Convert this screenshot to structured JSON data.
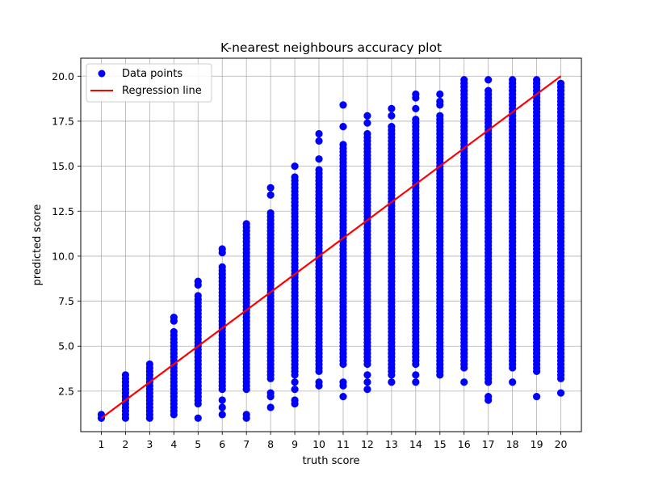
{
  "chart_data": {
    "type": "scatter",
    "title": "K-nearest neighbours accuracy plot",
    "xlabel": "truth score",
    "ylabel": "predicted score",
    "xlim": [
      0.15,
      20.85
    ],
    "ylim": [
      0.25,
      21.0
    ],
    "x_ticks": [
      1,
      2,
      3,
      4,
      5,
      6,
      7,
      8,
      9,
      10,
      11,
      12,
      13,
      14,
      15,
      16,
      17,
      18,
      19,
      20
    ],
    "y_ticks": [
      2.5,
      5.0,
      7.5,
      10.0,
      12.5,
      15.0,
      17.5,
      20.0
    ],
    "y_tick_labels": [
      "2.5",
      "5.0",
      "7.5",
      "10.0",
      "12.5",
      "15.0",
      "17.5",
      "20.0"
    ],
    "grid": true,
    "legend_position": "top-left",
    "series": [
      {
        "name": "Data points",
        "kind": "scatter",
        "color": "#0000ff",
        "columns": [
          {
            "x": 1,
            "min": 1.0,
            "max": 1.2,
            "outliers": []
          },
          {
            "x": 2,
            "min": 1.0,
            "max": 3.4,
            "outliers": []
          },
          {
            "x": 3,
            "min": 1.0,
            "max": 4.0,
            "outliers": []
          },
          {
            "x": 4,
            "min": 1.2,
            "max": 5.8,
            "outliers": [
              6.4,
              6.6
            ]
          },
          {
            "x": 5,
            "min": 1.8,
            "max": 7.8,
            "outliers": [
              1.0,
              8.4,
              8.6
            ]
          },
          {
            "x": 6,
            "min": 2.6,
            "max": 9.4,
            "outliers": [
              1.2,
              1.6,
              2.0,
              10.2,
              10.4
            ]
          },
          {
            "x": 7,
            "min": 2.6,
            "max": 11.8,
            "outliers": [
              1.0,
              1.2
            ]
          },
          {
            "x": 8,
            "min": 3.2,
            "max": 12.4,
            "outliers": [
              1.6,
              2.2,
              2.4,
              13.4,
              13.8
            ]
          },
          {
            "x": 9,
            "min": 3.4,
            "max": 14.4,
            "outliers": [
              1.8,
              2.0,
              2.6,
              3.0,
              15.0
            ]
          },
          {
            "x": 10,
            "min": 3.6,
            "max": 14.8,
            "outliers": [
              2.8,
              3.0,
              15.4,
              16.4,
              16.8
            ]
          },
          {
            "x": 11,
            "min": 4.0,
            "max": 16.2,
            "outliers": [
              2.2,
              2.8,
              3.0,
              17.2,
              18.4
            ]
          },
          {
            "x": 12,
            "min": 4.0,
            "max": 16.8,
            "outliers": [
              2.6,
              3.0,
              3.4,
              17.4,
              17.8
            ]
          },
          {
            "x": 13,
            "min": 3.4,
            "max": 17.2,
            "outliers": [
              3.0,
              17.8,
              18.2
            ]
          },
          {
            "x": 14,
            "min": 4.0,
            "max": 17.6,
            "outliers": [
              3.0,
              3.4,
              18.2,
              18.8,
              19.0
            ]
          },
          {
            "x": 15,
            "min": 3.6,
            "max": 17.8,
            "outliers": [
              3.4,
              18.4,
              18.6,
              19.0
            ]
          },
          {
            "x": 16,
            "min": 3.8,
            "max": 19.8,
            "outliers": [
              3.0
            ]
          },
          {
            "x": 17,
            "min": 3.0,
            "max": 19.2,
            "outliers": [
              2.0,
              2.2,
              19.8
            ]
          },
          {
            "x": 18,
            "min": 3.8,
            "max": 19.8,
            "outliers": [
              3.0
            ]
          },
          {
            "x": 19,
            "min": 3.6,
            "max": 19.8,
            "outliers": [
              2.2
            ]
          },
          {
            "x": 20,
            "min": 3.2,
            "max": 19.6,
            "outliers": [
              2.4
            ]
          }
        ]
      },
      {
        "name": "Regression line",
        "kind": "line",
        "color": "#ff0000",
        "x": [
          1,
          20
        ],
        "y": [
          1.0,
          20.0
        ]
      }
    ]
  }
}
